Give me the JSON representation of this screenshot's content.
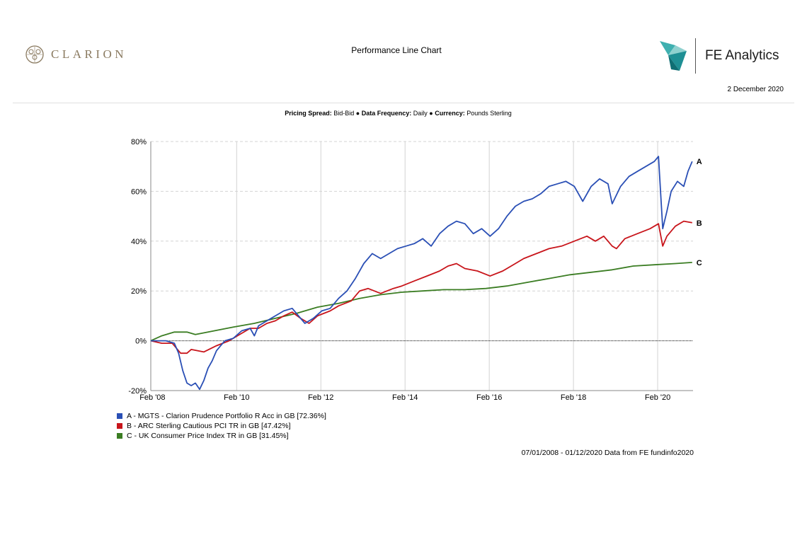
{
  "header": {
    "brand_left": "CLARION",
    "title": "Performance Line Chart",
    "brand_right": "FE Analytics",
    "date": "2 December 2020"
  },
  "meta": {
    "pricing_label": "Pricing Spread:",
    "pricing_value": "Bid-Bid",
    "frequency_label": "Data Frequency:",
    "frequency_value": "Daily",
    "currency_label": "Currency:",
    "currency_value": "Pounds Sterling",
    "separator": "●"
  },
  "colors": {
    "A": "#2a4fb5",
    "B": "#c8151b",
    "C": "#3b7d23",
    "grid": "#d3d3d3"
  },
  "chart_data": {
    "type": "line",
    "xlim": [
      2008.04,
      2020.92
    ],
    "ylim": [
      -20,
      80
    ],
    "y_ticks": [
      -20,
      0,
      20,
      40,
      60,
      80
    ],
    "y_tick_labels": [
      "-20%",
      "0%",
      "20%",
      "40%",
      "60%",
      "80%"
    ],
    "x_ticks": [
      2008.08,
      2010.08,
      2012.08,
      2014.08,
      2016.08,
      2018.08,
      2020.08
    ],
    "x_tick_labels": [
      "Feb '08",
      "Feb '10",
      "Feb '12",
      "Feb '14",
      "Feb '16",
      "Feb '18",
      "Feb '20"
    ],
    "grid": true,
    "legend_position": "bottom-left",
    "series": [
      {
        "key": "A",
        "end_label": "A",
        "legend": "A - MGTS - Clarion Prudence Portfolio R Acc in GB [72.36%]",
        "points": [
          [
            2008.04,
            0
          ],
          [
            2008.2,
            0
          ],
          [
            2008.4,
            0
          ],
          [
            2008.6,
            -1
          ],
          [
            2008.7,
            -5
          ],
          [
            2008.8,
            -12
          ],
          [
            2008.9,
            -17
          ],
          [
            2009.0,
            -18
          ],
          [
            2009.1,
            -17
          ],
          [
            2009.2,
            -19.5
          ],
          [
            2009.3,
            -16
          ],
          [
            2009.4,
            -11
          ],
          [
            2009.5,
            -8
          ],
          [
            2009.6,
            -4
          ],
          [
            2009.7,
            -2
          ],
          [
            2009.8,
            0
          ],
          [
            2010.0,
            1
          ],
          [
            2010.2,
            4
          ],
          [
            2010.4,
            5
          ],
          [
            2010.5,
            2
          ],
          [
            2010.6,
            6
          ],
          [
            2010.8,
            8
          ],
          [
            2011.0,
            10
          ],
          [
            2011.2,
            12
          ],
          [
            2011.4,
            13
          ],
          [
            2011.5,
            11
          ],
          [
            2011.7,
            7
          ],
          [
            2011.9,
            9
          ],
          [
            2012.1,
            12
          ],
          [
            2012.3,
            13
          ],
          [
            2012.5,
            17
          ],
          [
            2012.7,
            20
          ],
          [
            2012.9,
            25
          ],
          [
            2013.1,
            31
          ],
          [
            2013.3,
            35
          ],
          [
            2013.5,
            33
          ],
          [
            2013.7,
            35
          ],
          [
            2013.9,
            37
          ],
          [
            2014.1,
            38
          ],
          [
            2014.3,
            39
          ],
          [
            2014.5,
            41
          ],
          [
            2014.7,
            38
          ],
          [
            2014.9,
            43
          ],
          [
            2015.1,
            46
          ],
          [
            2015.3,
            48
          ],
          [
            2015.5,
            47
          ],
          [
            2015.7,
            43
          ],
          [
            2015.9,
            45
          ],
          [
            2016.1,
            42
          ],
          [
            2016.3,
            45
          ],
          [
            2016.5,
            50
          ],
          [
            2016.7,
            54
          ],
          [
            2016.9,
            56
          ],
          [
            2017.1,
            57
          ],
          [
            2017.3,
            59
          ],
          [
            2017.5,
            62
          ],
          [
            2017.7,
            63
          ],
          [
            2017.9,
            64
          ],
          [
            2018.1,
            62
          ],
          [
            2018.3,
            56
          ],
          [
            2018.5,
            62
          ],
          [
            2018.7,
            65
          ],
          [
            2018.9,
            63
          ],
          [
            2019.0,
            55
          ],
          [
            2019.2,
            62
          ],
          [
            2019.4,
            66
          ],
          [
            2019.6,
            68
          ],
          [
            2019.8,
            70
          ],
          [
            2020.0,
            72
          ],
          [
            2020.1,
            74
          ],
          [
            2020.2,
            45
          ],
          [
            2020.3,
            52
          ],
          [
            2020.4,
            60
          ],
          [
            2020.55,
            64
          ],
          [
            2020.7,
            62
          ],
          [
            2020.8,
            68
          ],
          [
            2020.9,
            72
          ]
        ]
      },
      {
        "key": "B",
        "end_label": "B",
        "legend": "B - ARC Sterling Cautious PCI TR in GB [47.42%]",
        "points": [
          [
            2008.04,
            0
          ],
          [
            2008.3,
            -1
          ],
          [
            2008.55,
            -1
          ],
          [
            2008.75,
            -5
          ],
          [
            2008.9,
            -5
          ],
          [
            2009.0,
            -3.5
          ],
          [
            2009.3,
            -4.5
          ],
          [
            2009.6,
            -2
          ],
          [
            2009.9,
            0
          ],
          [
            2010.2,
            3
          ],
          [
            2010.4,
            5
          ],
          [
            2010.6,
            5
          ],
          [
            2010.8,
            7
          ],
          [
            2011.0,
            8
          ],
          [
            2011.2,
            10
          ],
          [
            2011.4,
            11.5
          ],
          [
            2011.6,
            9
          ],
          [
            2011.8,
            7
          ],
          [
            2012.0,
            10
          ],
          [
            2012.3,
            12
          ],
          [
            2012.5,
            14
          ],
          [
            2012.8,
            16
          ],
          [
            2013.0,
            20
          ],
          [
            2013.2,
            21
          ],
          [
            2013.5,
            19
          ],
          [
            2013.8,
            21
          ],
          [
            2014.0,
            22
          ],
          [
            2014.3,
            24
          ],
          [
            2014.6,
            26
          ],
          [
            2014.9,
            28
          ],
          [
            2015.1,
            30
          ],
          [
            2015.3,
            31
          ],
          [
            2015.5,
            29
          ],
          [
            2015.8,
            28
          ],
          [
            2016.1,
            26
          ],
          [
            2016.4,
            28
          ],
          [
            2016.7,
            31
          ],
          [
            2016.9,
            33
          ],
          [
            2017.2,
            35
          ],
          [
            2017.5,
            37
          ],
          [
            2017.8,
            38
          ],
          [
            2018.1,
            40
          ],
          [
            2018.4,
            42
          ],
          [
            2018.6,
            40
          ],
          [
            2018.8,
            42
          ],
          [
            2019.0,
            38
          ],
          [
            2019.1,
            37
          ],
          [
            2019.3,
            41
          ],
          [
            2019.6,
            43
          ],
          [
            2019.9,
            45
          ],
          [
            2020.1,
            47
          ],
          [
            2020.2,
            38
          ],
          [
            2020.3,
            42
          ],
          [
            2020.5,
            46
          ],
          [
            2020.7,
            48
          ],
          [
            2020.9,
            47.4
          ]
        ]
      },
      {
        "key": "C",
        "end_label": "C",
        "legend": "C - UK Consumer Price Index TR in GB [31.45%]",
        "points": [
          [
            2008.04,
            0
          ],
          [
            2008.3,
            2
          ],
          [
            2008.6,
            3.5
          ],
          [
            2008.9,
            3.5
          ],
          [
            2009.1,
            2.5
          ],
          [
            2009.4,
            3.5
          ],
          [
            2009.7,
            4.5
          ],
          [
            2010.0,
            5.5
          ],
          [
            2010.5,
            7
          ],
          [
            2011.0,
            9
          ],
          [
            2011.5,
            11
          ],
          [
            2012.0,
            13.5
          ],
          [
            2012.5,
            15
          ],
          [
            2013.0,
            17
          ],
          [
            2013.5,
            18.5
          ],
          [
            2014.0,
            19.5
          ],
          [
            2014.5,
            20
          ],
          [
            2015.0,
            20.5
          ],
          [
            2015.5,
            20.5
          ],
          [
            2016.0,
            21
          ],
          [
            2016.5,
            22
          ],
          [
            2017.0,
            23.5
          ],
          [
            2017.5,
            25
          ],
          [
            2018.0,
            26.5
          ],
          [
            2018.5,
            27.5
          ],
          [
            2019.0,
            28.5
          ],
          [
            2019.5,
            30
          ],
          [
            2020.0,
            30.5
          ],
          [
            2020.5,
            31
          ],
          [
            2020.9,
            31.45
          ]
        ]
      }
    ]
  },
  "source_note": "07/01/2008 - 01/12/2020 Data from FE fundinfo2020"
}
